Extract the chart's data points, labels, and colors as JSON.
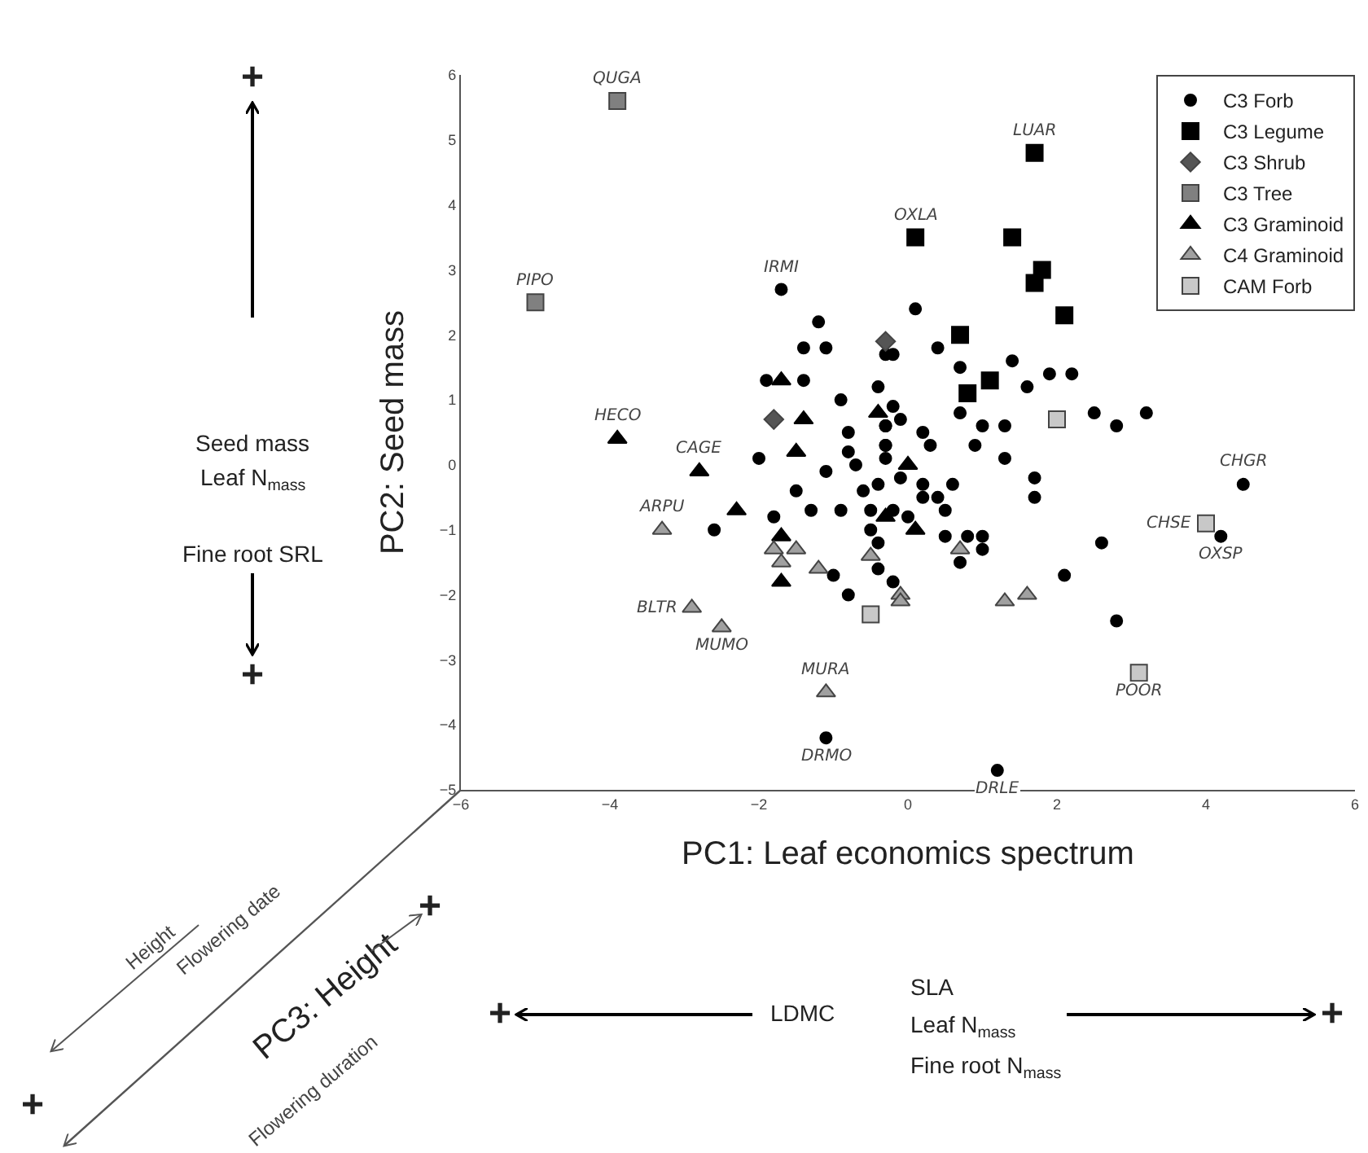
{
  "chart_data": {
    "type": "scatter",
    "xlabel": "PC1: Leaf economics spectrum",
    "ylabel": "PC2: Seed mass",
    "xlim": [
      -6,
      6
    ],
    "xticks": [
      -6,
      -4,
      -2,
      0,
      2,
      4,
      6
    ],
    "ylim": [
      -5,
      6
    ],
    "yticks": [
      -5,
      -4,
      -3,
      -2,
      -1,
      0,
      1,
      2,
      3,
      4,
      5,
      6
    ],
    "grid": false,
    "legend": "top right",
    "series": [
      {
        "name": "C3 Forb",
        "color": "#000000",
        "marker": "circle",
        "x": [
          -1.7,
          -1.1,
          1.2,
          4.2,
          4.5,
          -1.2,
          -1.4,
          -1.1,
          -0.3,
          -1.4,
          -1.9,
          -0.9,
          -0.4,
          -0.2,
          -0.8,
          -0.3,
          0.1,
          0.4,
          -0.2,
          0.7,
          1.4,
          1.6,
          1.9,
          2.2,
          0.7,
          1.0,
          1.3,
          2.5,
          2.8,
          3.2,
          0.2,
          -2.0,
          -0.8,
          -0.7,
          -1.1,
          -1.5,
          -1.3,
          -0.9,
          -0.6,
          -0.4,
          -1.8,
          -2.6,
          -0.5,
          -0.2,
          -0.5,
          -0.4,
          -1.0,
          -0.8,
          -0.4,
          -0.2,
          -0.3,
          -0.3,
          -0.3,
          -0.1,
          -0.3,
          0.3,
          0.9,
          1.3,
          0.2,
          0.6,
          0.2,
          0.4,
          -0.1,
          0.0,
          0.5,
          0.5,
          0.8,
          1.0,
          1.0,
          0.7,
          1.7,
          1.7,
          2.6,
          2.1,
          2.8
        ],
        "values": [
          2.7,
          -4.2,
          -4.7,
          -1.1,
          -0.3,
          2.2,
          1.8,
          1.8,
          1.7,
          1.3,
          1.3,
          1.0,
          1.2,
          0.9,
          0.5,
          0.6,
          2.4,
          1.8,
          1.7,
          1.5,
          1.6,
          1.2,
          1.4,
          1.4,
          0.8,
          0.6,
          0.6,
          0.8,
          0.6,
          0.8,
          0.5,
          0.1,
          0.2,
          0.0,
          -0.1,
          -0.4,
          -0.7,
          -0.7,
          -0.4,
          -0.3,
          -0.8,
          -1.0,
          -0.7,
          -0.7,
          -1.0,
          -1.2,
          -1.7,
          -2.0,
          -1.6,
          -1.8,
          0.6,
          0.3,
          0.1,
          0.7,
          0.3,
          0.3,
          0.3,
          0.1,
          -0.3,
          -0.3,
          -0.5,
          -0.5,
          -0.2,
          -0.8,
          -0.7,
          -1.1,
          -1.1,
          -1.1,
          -1.3,
          -1.5,
          -0.2,
          -0.5,
          -1.2,
          -1.7,
          -2.4
        ]
      },
      {
        "name": "C3 Legume",
        "color": "#000000",
        "marker": "square",
        "x": [
          1.7,
          0.1,
          1.4,
          1.8,
          1.7,
          2.1,
          0.7,
          1.1,
          0.8
        ],
        "values": [
          4.8,
          3.5,
          3.5,
          3.0,
          2.8,
          2.3,
          2.0,
          1.3,
          1.1
        ]
      },
      {
        "name": "C3 Shrub",
        "color": "#555555",
        "marker": "diamond",
        "x": [
          -0.3,
          -1.8
        ],
        "values": [
          1.9,
          0.7
        ]
      },
      {
        "name": "C3 Tree",
        "color": "#808080",
        "marker": "square",
        "x": [
          -3.9,
          -5.0
        ],
        "values": [
          5.6,
          2.5
        ]
      },
      {
        "name": "C3 Graminoid",
        "color": "#000000",
        "marker": "triangle",
        "x": [
          -3.9,
          -2.8,
          -1.7,
          -1.4,
          -0.4,
          -1.5,
          -2.3,
          -1.7,
          -1.7,
          -0.3,
          0.0,
          0.1
        ],
        "values": [
          0.4,
          -0.1,
          1.3,
          0.7,
          0.8,
          0.2,
          -0.7,
          -1.1,
          -1.8,
          -0.8,
          0.0,
          -1.0
        ]
      },
      {
        "name": "C4 Graminoid",
        "color": "#a0a0a0",
        "marker": "triangle",
        "x": [
          -3.3,
          -2.9,
          -2.5,
          -1.1,
          -1.8,
          -1.5,
          -1.7,
          -1.2,
          -0.5,
          -0.1,
          -0.1,
          0.7,
          1.3,
          1.6
        ],
        "values": [
          -1.0,
          -2.2,
          -2.5,
          -3.5,
          -1.3,
          -1.3,
          -1.5,
          -1.6,
          -1.4,
          -2.0,
          -2.1,
          -1.3,
          -2.1,
          -2.0
        ]
      },
      {
        "name": "CAM Forb",
        "color": "#c8c8c8",
        "marker": "square",
        "x": [
          3.1,
          4.0,
          2.0,
          -0.5
        ],
        "values": [
          -3.2,
          -0.9,
          0.7,
          -2.3
        ]
      }
    ],
    "annotations": [
      {
        "text": "QUGA",
        "x": -3.9,
        "y": 5.6
      },
      {
        "text": "PIPO",
        "x": -5.0,
        "y": 2.5
      },
      {
        "text": "IRMI",
        "x": -1.7,
        "y": 2.7
      },
      {
        "text": "HECO",
        "x": -3.9,
        "y": 0.4
      },
      {
        "text": "CAGE",
        "x": -2.8,
        "y": -0.1
      },
      {
        "text": "ARPU",
        "x": -3.3,
        "y": -1.0
      },
      {
        "text": "BLTR",
        "x": -2.9,
        "y": -2.2
      },
      {
        "text": "MUMO",
        "x": -2.5,
        "y": -2.5
      },
      {
        "text": "MURA",
        "x": -1.1,
        "y": -3.5
      },
      {
        "text": "DRMO",
        "x": -1.1,
        "y": -4.2
      },
      {
        "text": "DRLE",
        "x": 1.2,
        "y": -4.7
      },
      {
        "text": "POOR",
        "x": 3.1,
        "y": -3.2
      },
      {
        "text": "CHSE",
        "x": 4.0,
        "y": -0.9
      },
      {
        "text": "OXSP",
        "x": 4.2,
        "y": -1.1
      },
      {
        "text": "CHGR",
        "x": 4.5,
        "y": -0.3
      },
      {
        "text": "LUAR",
        "x": 1.7,
        "y": 4.8
      },
      {
        "text": "OXLA",
        "x": 0.1,
        "y": 3.5
      },
      "+",
      "Seed mass",
      "Leaf N$_{mass}$",
      "Fine root SRL",
      "+",
      "PC3: Height",
      "Height",
      "Flowering date",
      "Flowering duration",
      "+",
      "+",
      "+",
      "LDMC",
      "SLA",
      "Leaf N$_{mass}$",
      "Fine root N$_{mass}$",
      "+"
    ]
  }
}
